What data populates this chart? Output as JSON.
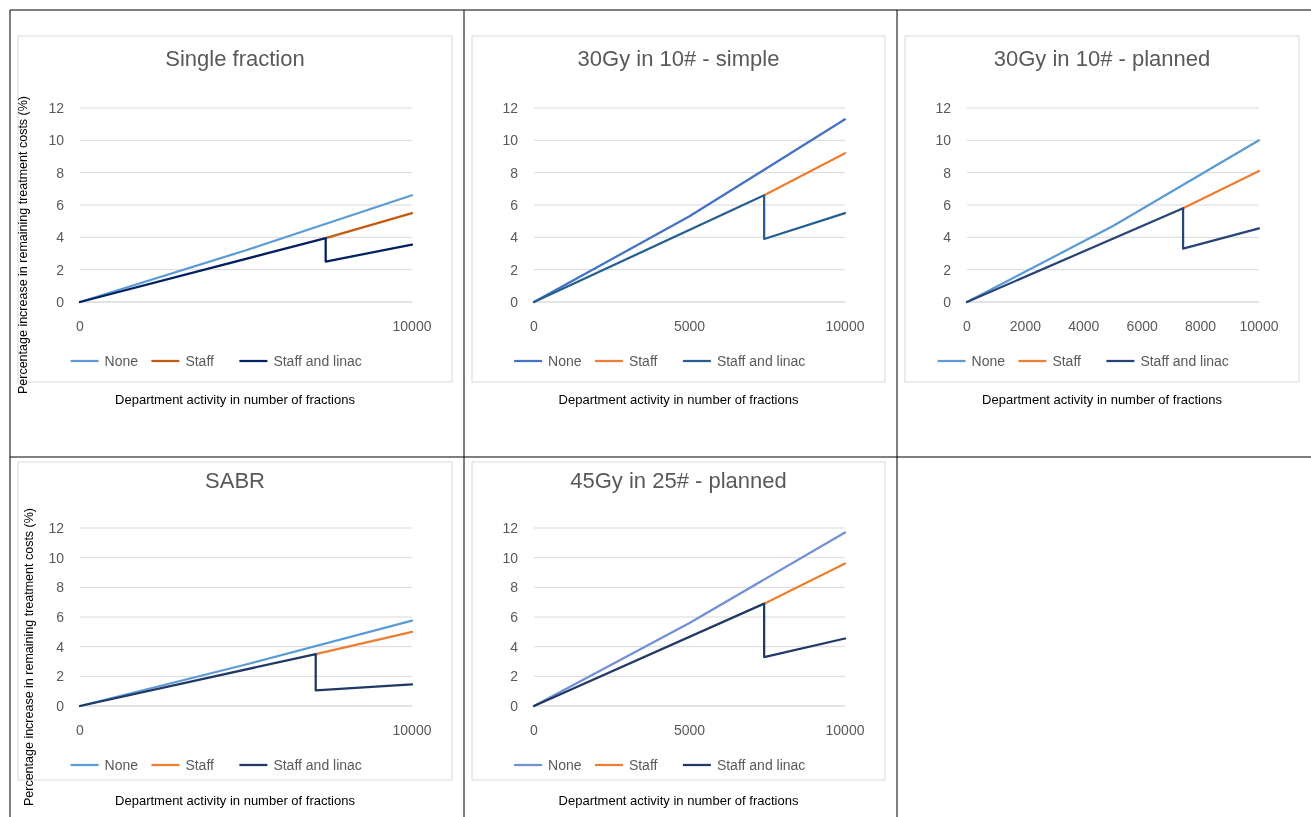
{
  "chart_data": [
    {
      "type": "line",
      "title": "Single fraction",
      "xlabel": "Department activity in number of fractions",
      "ylabel": "Percentage increase in remaining treatment costs (%)",
      "xlim": [
        0,
        10000
      ],
      "xticks": [
        0,
        10000
      ],
      "ylim": [
        0,
        12
      ],
      "yticks": [
        0,
        2,
        4,
        6,
        8,
        10,
        12
      ],
      "grid": "y",
      "legend": "bottom",
      "series": [
        {
          "name": "None",
          "color": "#5b9bd5",
          "x": [
            0,
            5000,
            10000
          ],
          "values": [
            0,
            3.2,
            6.6
          ]
        },
        {
          "name": "Staff",
          "color": "#c55a11",
          "x": [
            7400,
            10000
          ],
          "values": [
            3.95,
            5.5
          ]
        },
        {
          "name": "Staff and linac",
          "color": "#002060",
          "x": [
            0,
            7400,
            7400,
            10000
          ],
          "values": [
            0,
            3.95,
            2.5,
            3.55
          ]
        }
      ]
    },
    {
      "type": "line",
      "title": "30Gy in 10# - simple",
      "xlabel": "Department activity in number of fractions",
      "xlim": [
        0,
        10000
      ],
      "xticks": [
        0,
        5000,
        10000
      ],
      "ylim": [
        0,
        12
      ],
      "yticks": [
        0,
        2,
        4,
        6,
        8,
        10,
        12
      ],
      "grid": "y",
      "legend": "bottom",
      "series": [
        {
          "name": "None",
          "color": "#4472c4",
          "x": [
            0,
            5000,
            10000
          ],
          "values": [
            0,
            5.3,
            11.3
          ]
        },
        {
          "name": "Staff",
          "color": "#ed7d31",
          "x": [
            7400,
            10000
          ],
          "values": [
            6.6,
            9.2
          ]
        },
        {
          "name": "Staff and linac",
          "color": "#255e91",
          "x": [
            0,
            7400,
            7400,
            10000
          ],
          "values": [
            0,
            6.6,
            3.9,
            5.5
          ]
        }
      ]
    },
    {
      "type": "line",
      "title": "30Gy in 10# - planned",
      "xlabel": "Department activity in number of fractions",
      "xlim": [
        0,
        10000
      ],
      "xticks": [
        0,
        2000,
        4000,
        6000,
        8000,
        10000
      ],
      "ylim": [
        0,
        12
      ],
      "yticks": [
        0,
        2,
        4,
        6,
        8,
        10,
        12
      ],
      "grid": "y",
      "legend": "bottom",
      "series": [
        {
          "name": "None",
          "color": "#5b9bd5",
          "x": [
            0,
            5000,
            10000
          ],
          "values": [
            0,
            4.7,
            10.0
          ]
        },
        {
          "name": "Staff",
          "color": "#ed7d31",
          "x": [
            7400,
            10000
          ],
          "values": [
            5.8,
            8.1
          ]
        },
        {
          "name": "Staff and linac",
          "color": "#264478",
          "x": [
            0,
            7400,
            7400,
            10000
          ],
          "values": [
            0,
            5.8,
            3.3,
            4.55
          ]
        }
      ]
    },
    {
      "type": "line",
      "title": "SABR",
      "xlabel": "Department activity in number of fractions",
      "ylabel": "Percentage increase in remaining treatment costs (%)",
      "xlim": [
        0,
        10000
      ],
      "xticks": [
        0,
        10000
      ],
      "ylim": [
        0,
        12
      ],
      "yticks": [
        0,
        2,
        4,
        6,
        8,
        10,
        12
      ],
      "grid": "y",
      "legend": "bottom",
      "series": [
        {
          "name": "None",
          "color": "#5b9bd5",
          "x": [
            0,
            5000,
            10000
          ],
          "values": [
            0,
            2.8,
            5.75
          ]
        },
        {
          "name": "Staff",
          "color": "#ed7d31",
          "x": [
            7100,
            10000
          ],
          "values": [
            3.5,
            5.0
          ]
        },
        {
          "name": "Staff and linac",
          "color": "#1f3864",
          "x": [
            0,
            7100,
            7100,
            10000
          ],
          "values": [
            0,
            3.5,
            1.05,
            1.45
          ]
        }
      ]
    },
    {
      "type": "line",
      "title": "45Gy in 25# - planned",
      "xlabel": "Department activity in number of fractions",
      "xlim": [
        0,
        10000
      ],
      "xticks": [
        0,
        5000,
        10000
      ],
      "ylim": [
        0,
        12
      ],
      "yticks": [
        0,
        2,
        4,
        6,
        8,
        10,
        12
      ],
      "grid": "y",
      "legend": "bottom",
      "series": [
        {
          "name": "None",
          "color": "#7190d8",
          "x": [
            0,
            5000,
            10000
          ],
          "values": [
            0,
            5.6,
            11.7
          ]
        },
        {
          "name": "Staff",
          "color": "#ed7d31",
          "x": [
            7400,
            10000
          ],
          "values": [
            6.9,
            9.6
          ]
        },
        {
          "name": "Staff and linac",
          "color": "#203864",
          "x": [
            0,
            7400,
            7400,
            10000
          ],
          "values": [
            0,
            6.9,
            3.3,
            4.55
          ]
        }
      ]
    }
  ]
}
